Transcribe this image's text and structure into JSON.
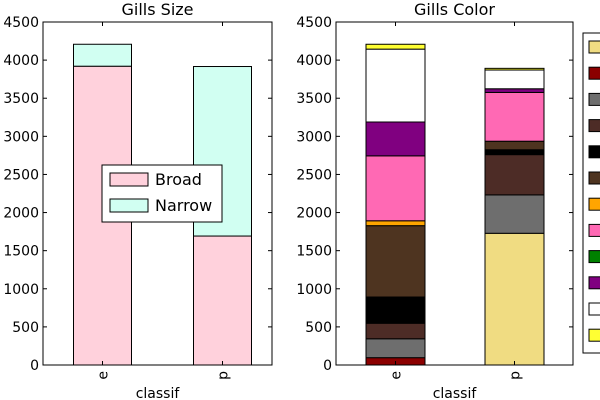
{
  "chart_data": [
    {
      "type": "bar",
      "stacked": true,
      "title": "Gills Size",
      "xlabel": "classif",
      "ylabel": "",
      "ylim": [
        0,
        4500
      ],
      "yticks": [
        0,
        500,
        1000,
        1500,
        2000,
        2500,
        3000,
        3500,
        4000,
        4500
      ],
      "categories": [
        "e",
        "p"
      ],
      "grid": false,
      "legend_position": "center",
      "series": [
        {
          "name": "Broad",
          "color": "#ffd1dc",
          "values": [
            3920,
            1692
          ]
        },
        {
          "name": "Narrow",
          "color": "#d1fff2",
          "values": [
            288,
            2224
          ]
        }
      ]
    },
    {
      "type": "bar",
      "stacked": true,
      "title": "Gills Color",
      "xlabel": "classif",
      "ylabel": "",
      "ylim": [
        0,
        4500
      ],
      "yticks": [
        0,
        500,
        1000,
        1500,
        2000,
        2500,
        3000,
        3500,
        4000,
        4500
      ],
      "categories": [
        "e",
        "p"
      ],
      "grid": false,
      "legend_position": "right (cropped)",
      "series": [
        {
          "name": "",
          "color": "#f0dc82",
          "values": [
            0,
            1728
          ]
        },
        {
          "name": "",
          "color": "#8b0000",
          "values": [
            96,
            0
          ]
        },
        {
          "name": "",
          "color": "#6e6e6e",
          "values": [
            248,
            504
          ]
        },
        {
          "name": "",
          "color": "#4d2c26",
          "values": [
            204,
            528
          ]
        },
        {
          "name": "",
          "color": "#000000",
          "values": [
            344,
            64
          ]
        },
        {
          "name": "",
          "color": "#4e3420",
          "values": [
            936,
            112
          ]
        },
        {
          "name": "",
          "color": "#ffa500",
          "values": [
            64,
            0
          ]
        },
        {
          "name": "",
          "color": "#ff69b4",
          "values": [
            852,
            640
          ]
        },
        {
          "name": "",
          "color": "#008000",
          "values": [
            0,
            0
          ]
        },
        {
          "name": "",
          "color": "#800080",
          "values": [
            444,
            48
          ]
        },
        {
          "name": "",
          "color": "#ffffff",
          "values": [
            956,
            246
          ]
        },
        {
          "name": "",
          "color": "#ffff33",
          "values": [
            64,
            22
          ]
        }
      ]
    }
  ]
}
